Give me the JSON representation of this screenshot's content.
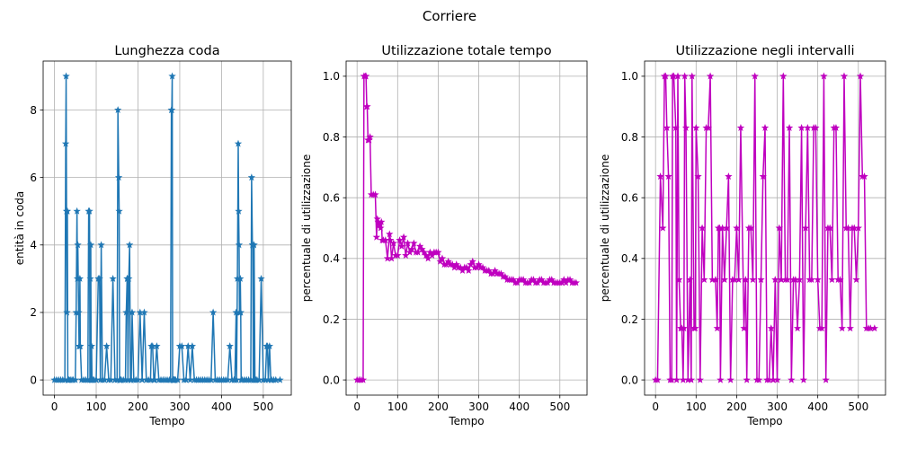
{
  "suptitle": "Corriere",
  "chart_data": [
    {
      "type": "line",
      "title": "Lunghezza coda",
      "xlabel": "Tempo",
      "ylabel": "entità in coda",
      "xlim": [
        -27,
        567
      ],
      "ylim": [
        -0.45,
        9.45
      ],
      "xticks": [
        0,
        100,
        200,
        300,
        400,
        500
      ],
      "yticks": [
        0,
        2,
        4,
        6,
        8
      ],
      "ytick_labels": [
        "0",
        "2",
        "4",
        "6",
        "8"
      ],
      "grid": true,
      "marker": "star",
      "color": "#1f77b4",
      "series": [
        {
          "x": [
            0,
            5,
            10,
            15,
            20,
            25,
            27,
            28,
            29,
            30,
            31,
            32,
            33,
            35,
            38,
            42,
            45,
            50,
            52,
            54,
            55,
            56,
            57,
            58,
            59,
            60,
            61,
            62,
            65,
            70,
            75,
            80,
            82,
            84,
            85,
            86,
            87,
            88,
            89,
            90,
            92,
            95,
            100,
            105,
            108,
            110,
            112,
            115,
            120,
            125,
            130,
            135,
            140,
            145,
            150,
            152,
            154,
            155,
            156,
            157,
            158,
            160,
            165,
            170,
            172,
            174,
            175,
            176,
            178,
            180,
            182,
            184,
            186,
            190,
            195,
            200,
            205,
            210,
            215,
            220,
            225,
            230,
            232,
            235,
            238,
            240,
            245,
            250,
            255,
            260,
            265,
            270,
            275,
            278,
            280,
            281,
            282,
            283,
            284,
            285,
            286,
            287,
            288,
            290,
            295,
            300,
            305,
            310,
            315,
            320,
            325,
            330,
            335,
            340,
            345,
            350,
            355,
            360,
            365,
            370,
            375,
            380,
            385,
            390,
            395,
            400,
            405,
            410,
            415,
            420,
            425,
            430,
            432,
            435,
            436,
            438,
            440,
            441,
            442,
            443,
            444,
            445,
            446,
            447,
            450,
            455,
            460,
            465,
            470,
            472,
            474,
            475,
            476,
            477,
            478,
            480,
            482,
            485,
            490,
            495,
            500,
            505,
            508,
            510,
            512,
            515,
            518,
            520,
            525,
            530,
            540
          ],
          "y": [
            0,
            0,
            0,
            0,
            0,
            0,
            7,
            9,
            5,
            2,
            5,
            0,
            0,
            0,
            0,
            0,
            0,
            0,
            2,
            5,
            3,
            4,
            3,
            2,
            1,
            1,
            3,
            1,
            0,
            0,
            0,
            0,
            5,
            5,
            0,
            3,
            4,
            0,
            1,
            0,
            0,
            0,
            0,
            3,
            3,
            0,
            4,
            0,
            0,
            1,
            0,
            0,
            3,
            0,
            0,
            8,
            6,
            5,
            0,
            0,
            0,
            0,
            0,
            0,
            2,
            3,
            3,
            0,
            3,
            4,
            0,
            0,
            2,
            0,
            0,
            0,
            2,
            0,
            2,
            0,
            0,
            0,
            1,
            1,
            0,
            0,
            1,
            0,
            0,
            0,
            0,
            0,
            0,
            0,
            8,
            8,
            9,
            0,
            0,
            0,
            0,
            0,
            0,
            0,
            0,
            1,
            1,
            0,
            0,
            1,
            0,
            1,
            0,
            0,
            0,
            0,
            0,
            0,
            0,
            0,
            0,
            2,
            0,
            0,
            0,
            0,
            0,
            0,
            0,
            1,
            0,
            0,
            0,
            2,
            0,
            3,
            7,
            5,
            4,
            2,
            2,
            3,
            2,
            0,
            0,
            0,
            0,
            0,
            0,
            6,
            4,
            4,
            0,
            0,
            4,
            0,
            0,
            0,
            0,
            3,
            0,
            0,
            1,
            1,
            0,
            1,
            0,
            0,
            0,
            0,
            0
          ]
        }
      ]
    },
    {
      "type": "line",
      "title": "Utilizzazione totale tempo",
      "xlabel": "Tempo",
      "ylabel": "percentuale di utilizzazione",
      "xlim": [
        -27,
        567
      ],
      "ylim": [
        -0.05,
        1.05
      ],
      "xticks": [
        0,
        100,
        200,
        300,
        400,
        500
      ],
      "yticks": [
        0,
        0.2,
        0.4,
        0.6,
        0.8,
        1
      ],
      "ytick_labels": [
        "0.0",
        "0.2",
        "0.4",
        "0.6",
        "0.8",
        "1.0"
      ],
      "grid": true,
      "marker": "star",
      "color": "#bf00bf",
      "series": [
        {
          "x": [
            0,
            5,
            10,
            15,
            17,
            20,
            22,
            24,
            25,
            27,
            28,
            30,
            32,
            35,
            40,
            45,
            48,
            50,
            52,
            55,
            58,
            60,
            62,
            65,
            70,
            75,
            80,
            82,
            85,
            90,
            95,
            100,
            105,
            110,
            115,
            120,
            125,
            130,
            135,
            140,
            145,
            150,
            155,
            160,
            165,
            170,
            175,
            180,
            185,
            190,
            195,
            200,
            205,
            210,
            215,
            220,
            225,
            230,
            235,
            240,
            245,
            250,
            255,
            260,
            265,
            270,
            275,
            280,
            285,
            290,
            295,
            300,
            305,
            310,
            315,
            320,
            325,
            330,
            335,
            340,
            345,
            350,
            355,
            360,
            365,
            370,
            375,
            380,
            385,
            390,
            395,
            400,
            405,
            410,
            415,
            420,
            425,
            430,
            435,
            440,
            445,
            450,
            455,
            460,
            465,
            470,
            475,
            480,
            485,
            490,
            495,
            500,
            505,
            510,
            515,
            520,
            525,
            530,
            535,
            540
          ],
          "y": [
            0,
            0,
            0,
            0,
            1,
            1,
            1,
            0.9,
            0.9,
            0.79,
            0.79,
            0.79,
            0.8,
            0.61,
            0.61,
            0.61,
            0.47,
            0.53,
            0.52,
            0.51,
            0.5,
            0.52,
            0.46,
            0.46,
            0.46,
            0.4,
            0.48,
            0.46,
            0.4,
            0.45,
            0.41,
            0.41,
            0.46,
            0.44,
            0.47,
            0.41,
            0.45,
            0.42,
            0.43,
            0.45,
            0.42,
            0.42,
            0.44,
            0.43,
            0.42,
            0.41,
            0.4,
            0.42,
            0.41,
            0.42,
            0.42,
            0.42,
            0.39,
            0.4,
            0.38,
            0.38,
            0.39,
            0.38,
            0.38,
            0.37,
            0.38,
            0.37,
            0.37,
            0.36,
            0.37,
            0.37,
            0.36,
            0.38,
            0.39,
            0.37,
            0.37,
            0.38,
            0.37,
            0.37,
            0.36,
            0.36,
            0.36,
            0.35,
            0.35,
            0.36,
            0.35,
            0.35,
            0.35,
            0.34,
            0.34,
            0.33,
            0.33,
            0.33,
            0.33,
            0.32,
            0.32,
            0.33,
            0.33,
            0.33,
            0.32,
            0.32,
            0.32,
            0.33,
            0.33,
            0.32,
            0.32,
            0.33,
            0.33,
            0.32,
            0.32,
            0.32,
            0.33,
            0.33,
            0.32,
            0.32,
            0.32,
            0.32,
            0.32,
            0.33,
            0.32,
            0.33,
            0.33,
            0.32,
            0.32,
            0.32
          ]
        }
      ]
    },
    {
      "type": "line",
      "title": "Utilizzazione negli intervalli",
      "xlabel": "Tempo",
      "ylabel": "percentuale di utilizzazione",
      "xlim": [
        -27,
        567
      ],
      "ylim": [
        -0.05,
        1.05
      ],
      "xticks": [
        0,
        100,
        200,
        300,
        400,
        500
      ],
      "yticks": [
        0,
        0.2,
        0.4,
        0.6,
        0.8,
        1
      ],
      "ytick_labels": [
        "0.0",
        "0.2",
        "0.4",
        "0.6",
        "0.8",
        "1.0"
      ],
      "grid": true,
      "marker": "star",
      "color": "#bf00bf",
      "series": [
        {
          "x": [
            0,
            5,
            12,
            18,
            22,
            25,
            28,
            32,
            36,
            40,
            42,
            45,
            50,
            52,
            55,
            58,
            62,
            65,
            68,
            70,
            72,
            75,
            80,
            85,
            88,
            90,
            95,
            98,
            100,
            105,
            110,
            115,
            120,
            125,
            130,
            135,
            140,
            148,
            152,
            155,
            158,
            160,
            165,
            170,
            175,
            180,
            185,
            190,
            195,
            200,
            205,
            210,
            218,
            222,
            225,
            230,
            235,
            240,
            245,
            250,
            255,
            260,
            265,
            270,
            275,
            280,
            285,
            290,
            295,
            300,
            305,
            310,
            315,
            320,
            325,
            330,
            335,
            340,
            345,
            350,
            355,
            360,
            365,
            370,
            375,
            380,
            385,
            390,
            395,
            400,
            405,
            410,
            415,
            420,
            425,
            430,
            435,
            440,
            445,
            450,
            455,
            460,
            465,
            470,
            475,
            480,
            485,
            490,
            495,
            500,
            505,
            510,
            515,
            520,
            525,
            530,
            540
          ],
          "y": [
            0,
            0,
            0.67,
            0.5,
            1,
            1,
            0.83,
            0.67,
            0,
            0,
            1,
            1,
            0.83,
            0,
            1,
            0.33,
            0.17,
            0.17,
            0,
            0.17,
            1,
            0.83,
            0,
            0.33,
            0,
            1,
            0.17,
            0.17,
            0.83,
            0.67,
            0,
            0.5,
            0.33,
            0.83,
            0.83,
            1,
            0.33,
            0.33,
            0.17,
            0.5,
            0.5,
            0,
            0.5,
            0.33,
            0.5,
            0.67,
            0,
            0.33,
            0.33,
            0.5,
            0.33,
            0.83,
            0.17,
            0.33,
            0,
            0.5,
            0.5,
            0.33,
            1,
            0,
            0,
            0.33,
            0.67,
            0.83,
            0,
            0,
            0.17,
            0,
            0.33,
            0,
            0.5,
            0.33,
            1,
            0.33,
            0.33,
            0.83,
            0,
            0.33,
            0.33,
            0.17,
            0.33,
            0.83,
            0,
            0.5,
            0.83,
            0.33,
            0.33,
            0.83,
            0.83,
            0.33,
            0.17,
            0.17,
            1,
            0,
            0.5,
            0.5,
            0.33,
            0.83,
            0.83,
            0.33,
            0.33,
            0.17,
            1,
            0.5,
            0.5,
            0.17,
            0.5,
            0.5,
            0.33,
            0.5,
            1,
            0.67,
            0.67,
            0.17,
            0.17,
            0.17,
            0.17
          ]
        }
      ]
    }
  ]
}
